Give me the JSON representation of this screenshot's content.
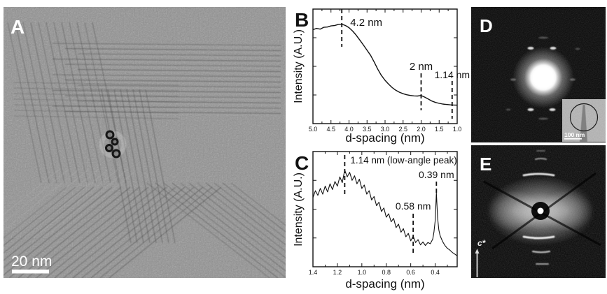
{
  "figure": {
    "panels": {
      "a": {
        "label": "A",
        "scale_bar_text": "20 nm",
        "description": "TEM image of crisscrossing fibrous nanocrystal bundles with small dark particle cluster"
      },
      "b": {
        "label": "B"
      },
      "c": {
        "label": "C"
      },
      "d": {
        "label": "D",
        "description": "Electron diffraction / FFT pattern with bright central beam and symmetric reflection spots",
        "inset": {
          "scale_bar_text": "100 nm",
          "description": "TEM inset of needle-shaped crystal with circled tip"
        }
      },
      "e": {
        "label": "E",
        "axis_arrow_label": "c*",
        "description": "Fiber diffraction pattern with diffuse equatorial scattering, layer-line arcs and beam stop"
      }
    },
    "colors": {
      "curve": "#111111",
      "panel_dark_bg": "#060606",
      "tem_gray": "#8d8d8d",
      "white": "#ffffff"
    }
  },
  "chart_data": [
    {
      "panel": "B",
      "type": "line",
      "title": "",
      "xlabel": "d-spacing (nm)",
      "ylabel": "Intensity (A.U.)",
      "x_axis_reversed": true,
      "xlim": [
        5.0,
        1.0
      ],
      "ylim": [
        0,
        1
      ],
      "grid": false,
      "legend": "none",
      "x_ticks": [
        5.0,
        4.5,
        4.0,
        3.5,
        3.0,
        2.5,
        2.0,
        1.5,
        1.0
      ],
      "x_minor_step": 0.25,
      "annotations": [
        {
          "x": 4.2,
          "label": "4.2 nm"
        },
        {
          "x": 2.0,
          "label": "2 nm"
        },
        {
          "x": 1.14,
          "label": "1.14 nm"
        }
      ],
      "x": [
        5.0,
        4.9,
        4.8,
        4.7,
        4.6,
        4.5,
        4.4,
        4.3,
        4.2,
        4.1,
        4.0,
        3.9,
        3.8,
        3.7,
        3.6,
        3.5,
        3.4,
        3.3,
        3.2,
        3.1,
        3.0,
        2.9,
        2.8,
        2.7,
        2.6,
        2.5,
        2.4,
        2.3,
        2.2,
        2.1,
        2.0,
        1.9,
        1.8,
        1.7,
        1.6,
        1.5,
        1.4,
        1.3,
        1.2,
        1.1,
        1.0
      ],
      "y": [
        0.82,
        0.831,
        0.825,
        0.841,
        0.843,
        0.853,
        0.856,
        0.865,
        0.868,
        0.857,
        0.838,
        0.808,
        0.772,
        0.73,
        0.686,
        0.64,
        0.596,
        0.536,
        0.474,
        0.42,
        0.378,
        0.344,
        0.314,
        0.291,
        0.274,
        0.261,
        0.252,
        0.246,
        0.242,
        0.241,
        0.246,
        0.231,
        0.214,
        0.197,
        0.185,
        0.177,
        0.171,
        0.167,
        0.164,
        0.162,
        0.161
      ]
    },
    {
      "panel": "C",
      "type": "line",
      "title": "",
      "xlabel": "d-spacing (nm)",
      "ylabel": "Intensity (A.U.)",
      "x_axis_reversed": true,
      "xlim": [
        1.4,
        0.22
      ],
      "ylim": [
        0,
        1
      ],
      "grid": false,
      "legend": "none",
      "x_ticks": [
        1.4,
        1.2,
        1.0,
        0.8,
        0.6,
        0.4
      ],
      "x_minor_step": 0.1,
      "annotations": [
        {
          "x": 1.14,
          "label": "1.14 nm (low-angle peak)"
        },
        {
          "x": 0.58,
          "label": "0.58 nm"
        },
        {
          "x": 0.39,
          "label": "0.39 nm"
        }
      ],
      "x": [
        1.4,
        1.38,
        1.36,
        1.34,
        1.32,
        1.3,
        1.28,
        1.26,
        1.24,
        1.22,
        1.2,
        1.18,
        1.16,
        1.14,
        1.12,
        1.1,
        1.08,
        1.06,
        1.04,
        1.02,
        1.0,
        0.98,
        0.96,
        0.94,
        0.92,
        0.9,
        0.88,
        0.86,
        0.84,
        0.82,
        0.8,
        0.78,
        0.76,
        0.74,
        0.72,
        0.7,
        0.68,
        0.66,
        0.64,
        0.62,
        0.6,
        0.58,
        0.56,
        0.54,
        0.52,
        0.5,
        0.48,
        0.46,
        0.44,
        0.42,
        0.41,
        0.4,
        0.39,
        0.38,
        0.37,
        0.36,
        0.34,
        0.32,
        0.3,
        0.28,
        0.26,
        0.24,
        0.22
      ],
      "y": [
        0.6,
        0.66,
        0.62,
        0.68,
        0.63,
        0.7,
        0.65,
        0.72,
        0.67,
        0.74,
        0.7,
        0.78,
        0.73,
        0.84,
        0.78,
        0.82,
        0.75,
        0.79,
        0.72,
        0.76,
        0.68,
        0.71,
        0.63,
        0.66,
        0.58,
        0.61,
        0.53,
        0.56,
        0.48,
        0.51,
        0.43,
        0.46,
        0.39,
        0.42,
        0.34,
        0.37,
        0.3,
        0.33,
        0.26,
        0.29,
        0.225,
        0.265,
        0.21,
        0.235,
        0.19,
        0.215,
        0.185,
        0.21,
        0.2,
        0.24,
        0.3,
        0.4,
        0.64,
        0.42,
        0.32,
        0.27,
        0.22,
        0.185,
        0.16,
        0.145,
        0.125,
        0.11,
        0.095
      ]
    }
  ]
}
